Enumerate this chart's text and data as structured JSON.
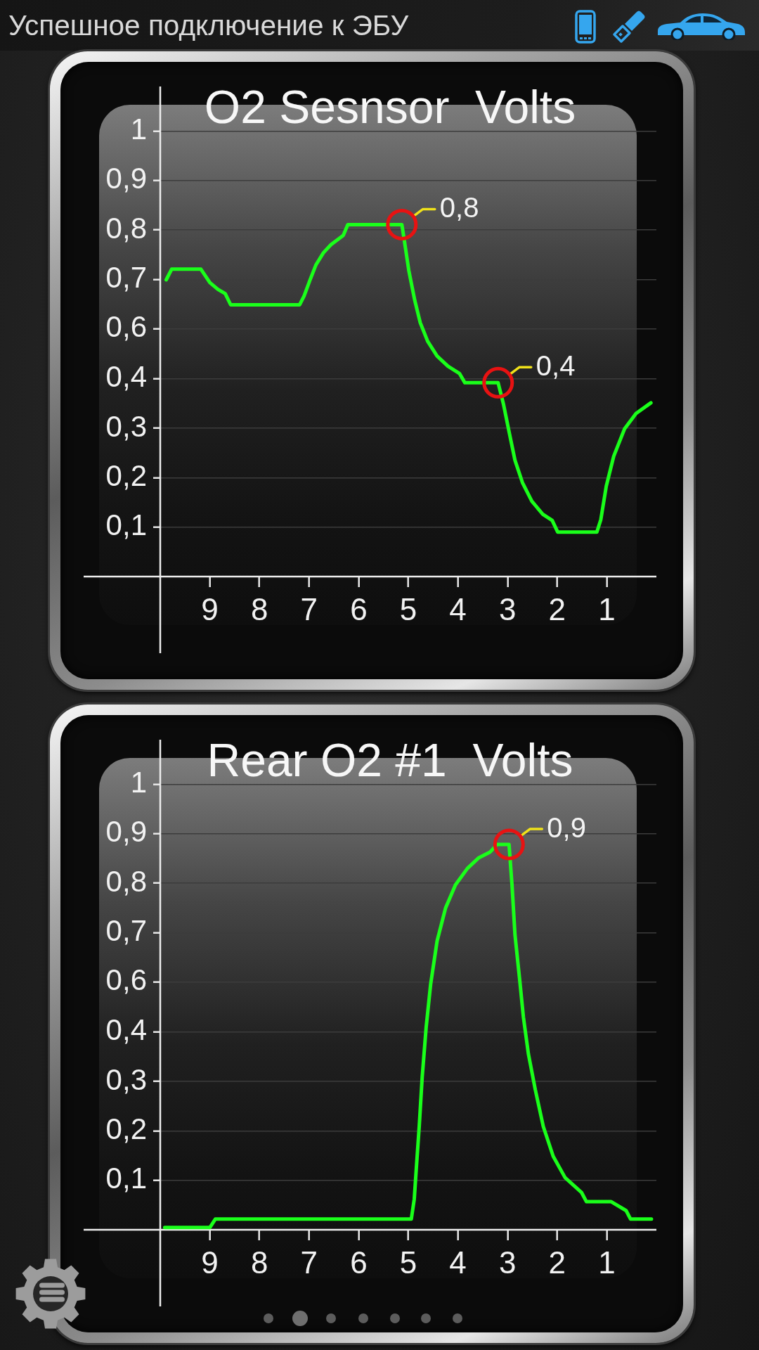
{
  "chart_data": [
    {
      "type": "line",
      "title": "O2 Sesnsor  Volts",
      "color": "#1aff1a",
      "x": [
        9.88,
        9.77,
        9.18,
        9.0,
        8.84,
        8.69,
        8.58,
        7.19,
        7.1,
        6.98,
        6.86,
        6.71,
        6.56,
        6.31,
        6.22,
        5.13,
        5.08,
        4.99,
        4.87,
        4.76,
        4.61,
        4.42,
        4.2,
        3.97,
        3.86,
        3.19,
        3.08,
        2.96,
        2.85,
        2.7,
        2.51,
        2.29,
        2.1,
        1.99,
        1.2,
        1.12,
        1.01,
        0.86,
        0.64,
        0.41,
        0.11
      ],
      "values": [
        0.666,
        0.69,
        0.69,
        0.66,
        0.645,
        0.635,
        0.61,
        0.61,
        0.63,
        0.666,
        0.7,
        0.727,
        0.745,
        0.766,
        0.79,
        0.79,
        0.754,
        0.687,
        0.62,
        0.57,
        0.528,
        0.495,
        0.472,
        0.456,
        0.435,
        0.435,
        0.386,
        0.32,
        0.261,
        0.211,
        0.169,
        0.14,
        0.126,
        0.1,
        0.1,
        0.128,
        0.203,
        0.27,
        0.332,
        0.366,
        0.39
      ],
      "xlim": [
        10,
        0
      ],
      "xticks": [
        9,
        8,
        7,
        6,
        5,
        4,
        3,
        2,
        1
      ],
      "ylim": [
        0,
        1.1
      ],
      "yticks": [
        {
          "value": 0.111,
          "label": "0,1"
        },
        {
          "value": 0.222,
          "label": "0,2"
        },
        {
          "value": 0.333,
          "label": "0,3"
        },
        {
          "value": 0.444,
          "label": "0,4"
        },
        {
          "value": 0.556,
          "label": "0,6"
        },
        {
          "value": 0.667,
          "label": "0,7"
        },
        {
          "value": 0.778,
          "label": "0,8"
        },
        {
          "value": 0.889,
          "label": "0,9"
        },
        1
      ],
      "grid": "y",
      "annotations": [
        "Успешное подключение к ЭБУ",
        {
          "text": "0,8",
          "x": 5.13,
          "y": 0.79
        },
        {
          "text": "0,4",
          "x": 3.19,
          "y": 0.435
        }
      ]
    },
    {
      "type": "line",
      "title": "Rear O2 #1  Volts",
      "color": "#1aff1a",
      "x": [
        9.91,
        9.0,
        8.89,
        4.94,
        4.88,
        4.84,
        4.78,
        4.72,
        4.64,
        4.55,
        4.42,
        4.25,
        4.05,
        3.81,
        3.58,
        3.35,
        3.21,
        2.97,
        2.91,
        2.85,
        2.76,
        2.68,
        2.58,
        2.44,
        2.28,
        2.08,
        1.84,
        1.51,
        1.41,
        0.91,
        0.61,
        0.52,
        0.1
      ],
      "values": [
        0.005,
        0.005,
        0.024,
        0.024,
        0.069,
        0.136,
        0.232,
        0.343,
        0.455,
        0.551,
        0.648,
        0.722,
        0.774,
        0.811,
        0.835,
        0.848,
        0.865,
        0.865,
        0.774,
        0.662,
        0.566,
        0.477,
        0.395,
        0.314,
        0.232,
        0.165,
        0.117,
        0.084,
        0.063,
        0.063,
        0.043,
        0.024,
        0.024
      ],
      "xlim": [
        10,
        0
      ],
      "xticks": [
        9,
        8,
        7,
        6,
        5,
        4,
        3,
        2,
        1
      ],
      "ylim": [
        0,
        1.1
      ],
      "yticks": [
        {
          "value": 0.111,
          "label": "0,1"
        },
        {
          "value": 0.222,
          "label": "0,2"
        },
        {
          "value": 0.333,
          "label": "0,3"
        },
        {
          "value": 0.444,
          "label": "0,4"
        },
        {
          "value": 0.556,
          "label": "0,6"
        },
        {
          "value": 0.667,
          "label": "0,7"
        },
        {
          "value": 0.778,
          "label": "0,8"
        },
        {
          "value": 0.889,
          "label": "0,9"
        },
        1
      ],
      "grid": "y",
      "annotations": [
        {
          "text": "0,9",
          "x": 2.97,
          "y": 0.865
        }
      ]
    }
  ]
}
